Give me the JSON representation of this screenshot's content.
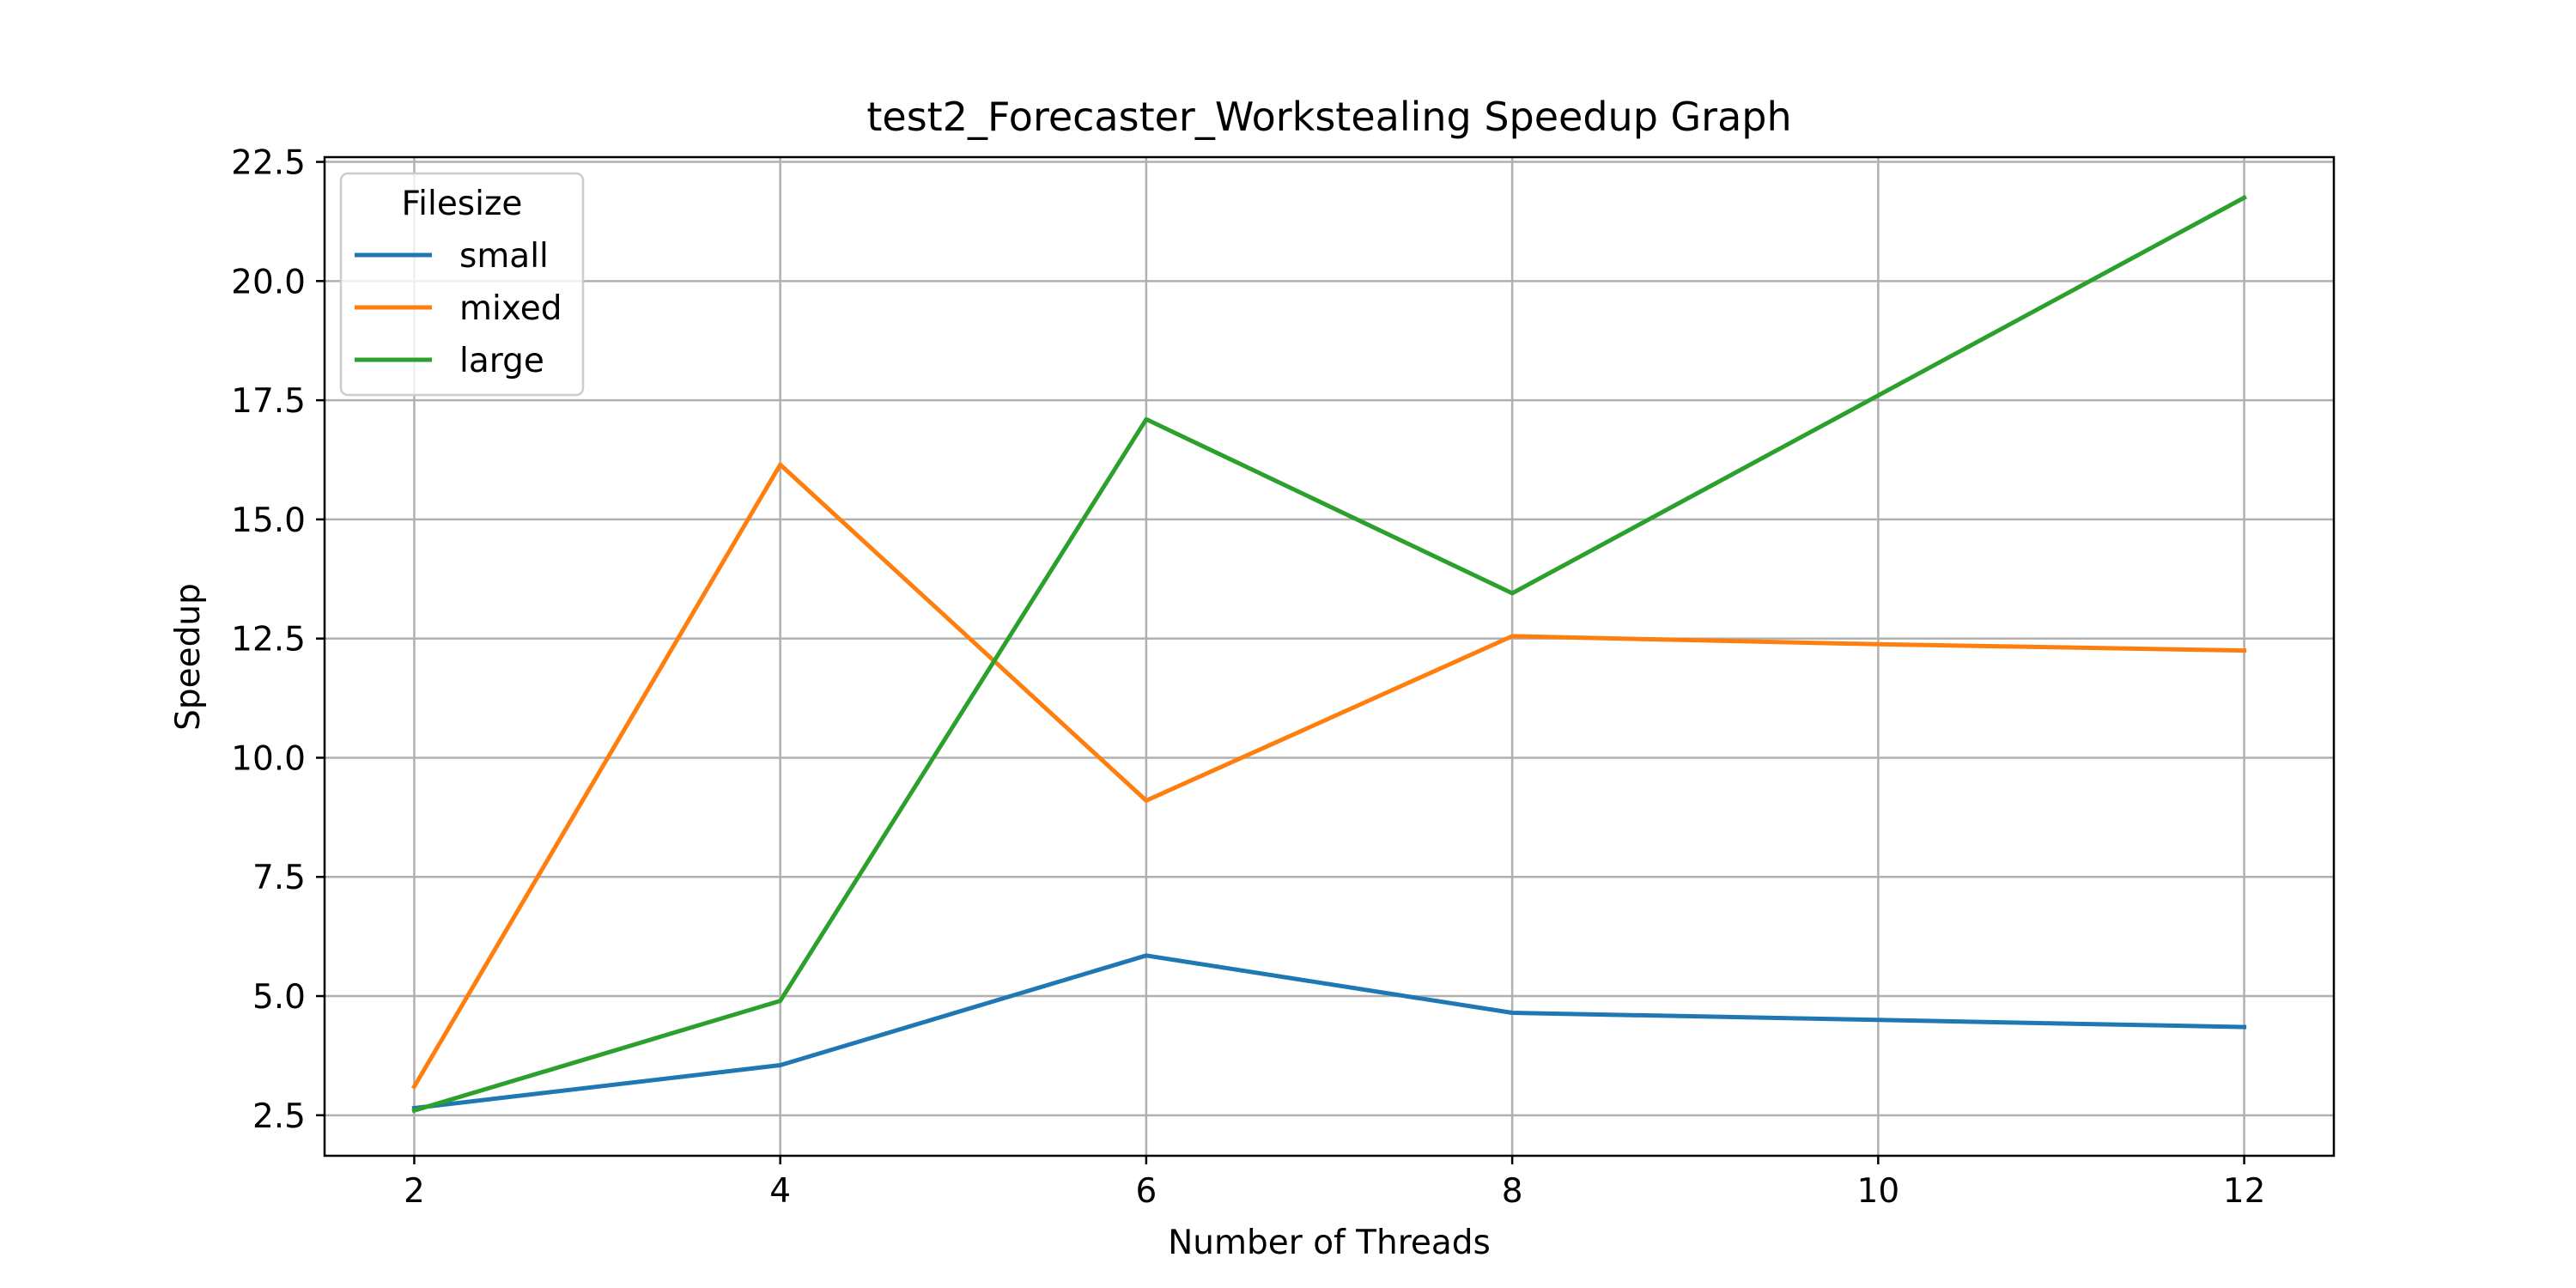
{
  "chart_data": {
    "type": "line",
    "title": "test2_Forecaster_Workstealing Speedup Graph",
    "xlabel": "Number of Threads",
    "ylabel": "Speedup",
    "x": [
      2,
      4,
      6,
      8,
      10,
      12
    ],
    "xticks": [
      2,
      4,
      6,
      8,
      10,
      12
    ],
    "xtick_labels": [
      "2",
      "4",
      "6",
      "8",
      "10",
      "12"
    ],
    "yticks": [
      2.5,
      5.0,
      7.5,
      10.0,
      12.5,
      15.0,
      17.5,
      20.0,
      22.5
    ],
    "ytick_labels": [
      "2.5",
      "5.0",
      "7.5",
      "10.0",
      "12.5",
      "15.0",
      "17.5",
      "20.0",
      "22.5"
    ],
    "xlim": [
      1.51,
      12.49
    ],
    "ylim": [
      1.65,
      22.6
    ],
    "grid": true,
    "legend": {
      "title": "Filesize",
      "placement": "top-left"
    },
    "series": [
      {
        "name": "small",
        "color": "#1f77b4",
        "values": [
          2.65,
          3.55,
          5.85,
          4.65,
          4.5,
          4.35
        ]
      },
      {
        "name": "mixed",
        "color": "#ff7f0e",
        "values": [
          3.1,
          16.15,
          9.1,
          12.55,
          12.38,
          12.25
        ]
      },
      {
        "name": "large",
        "color": "#2ca02c",
        "values": [
          2.6,
          4.9,
          17.1,
          13.45,
          17.6,
          21.75
        ]
      }
    ]
  }
}
